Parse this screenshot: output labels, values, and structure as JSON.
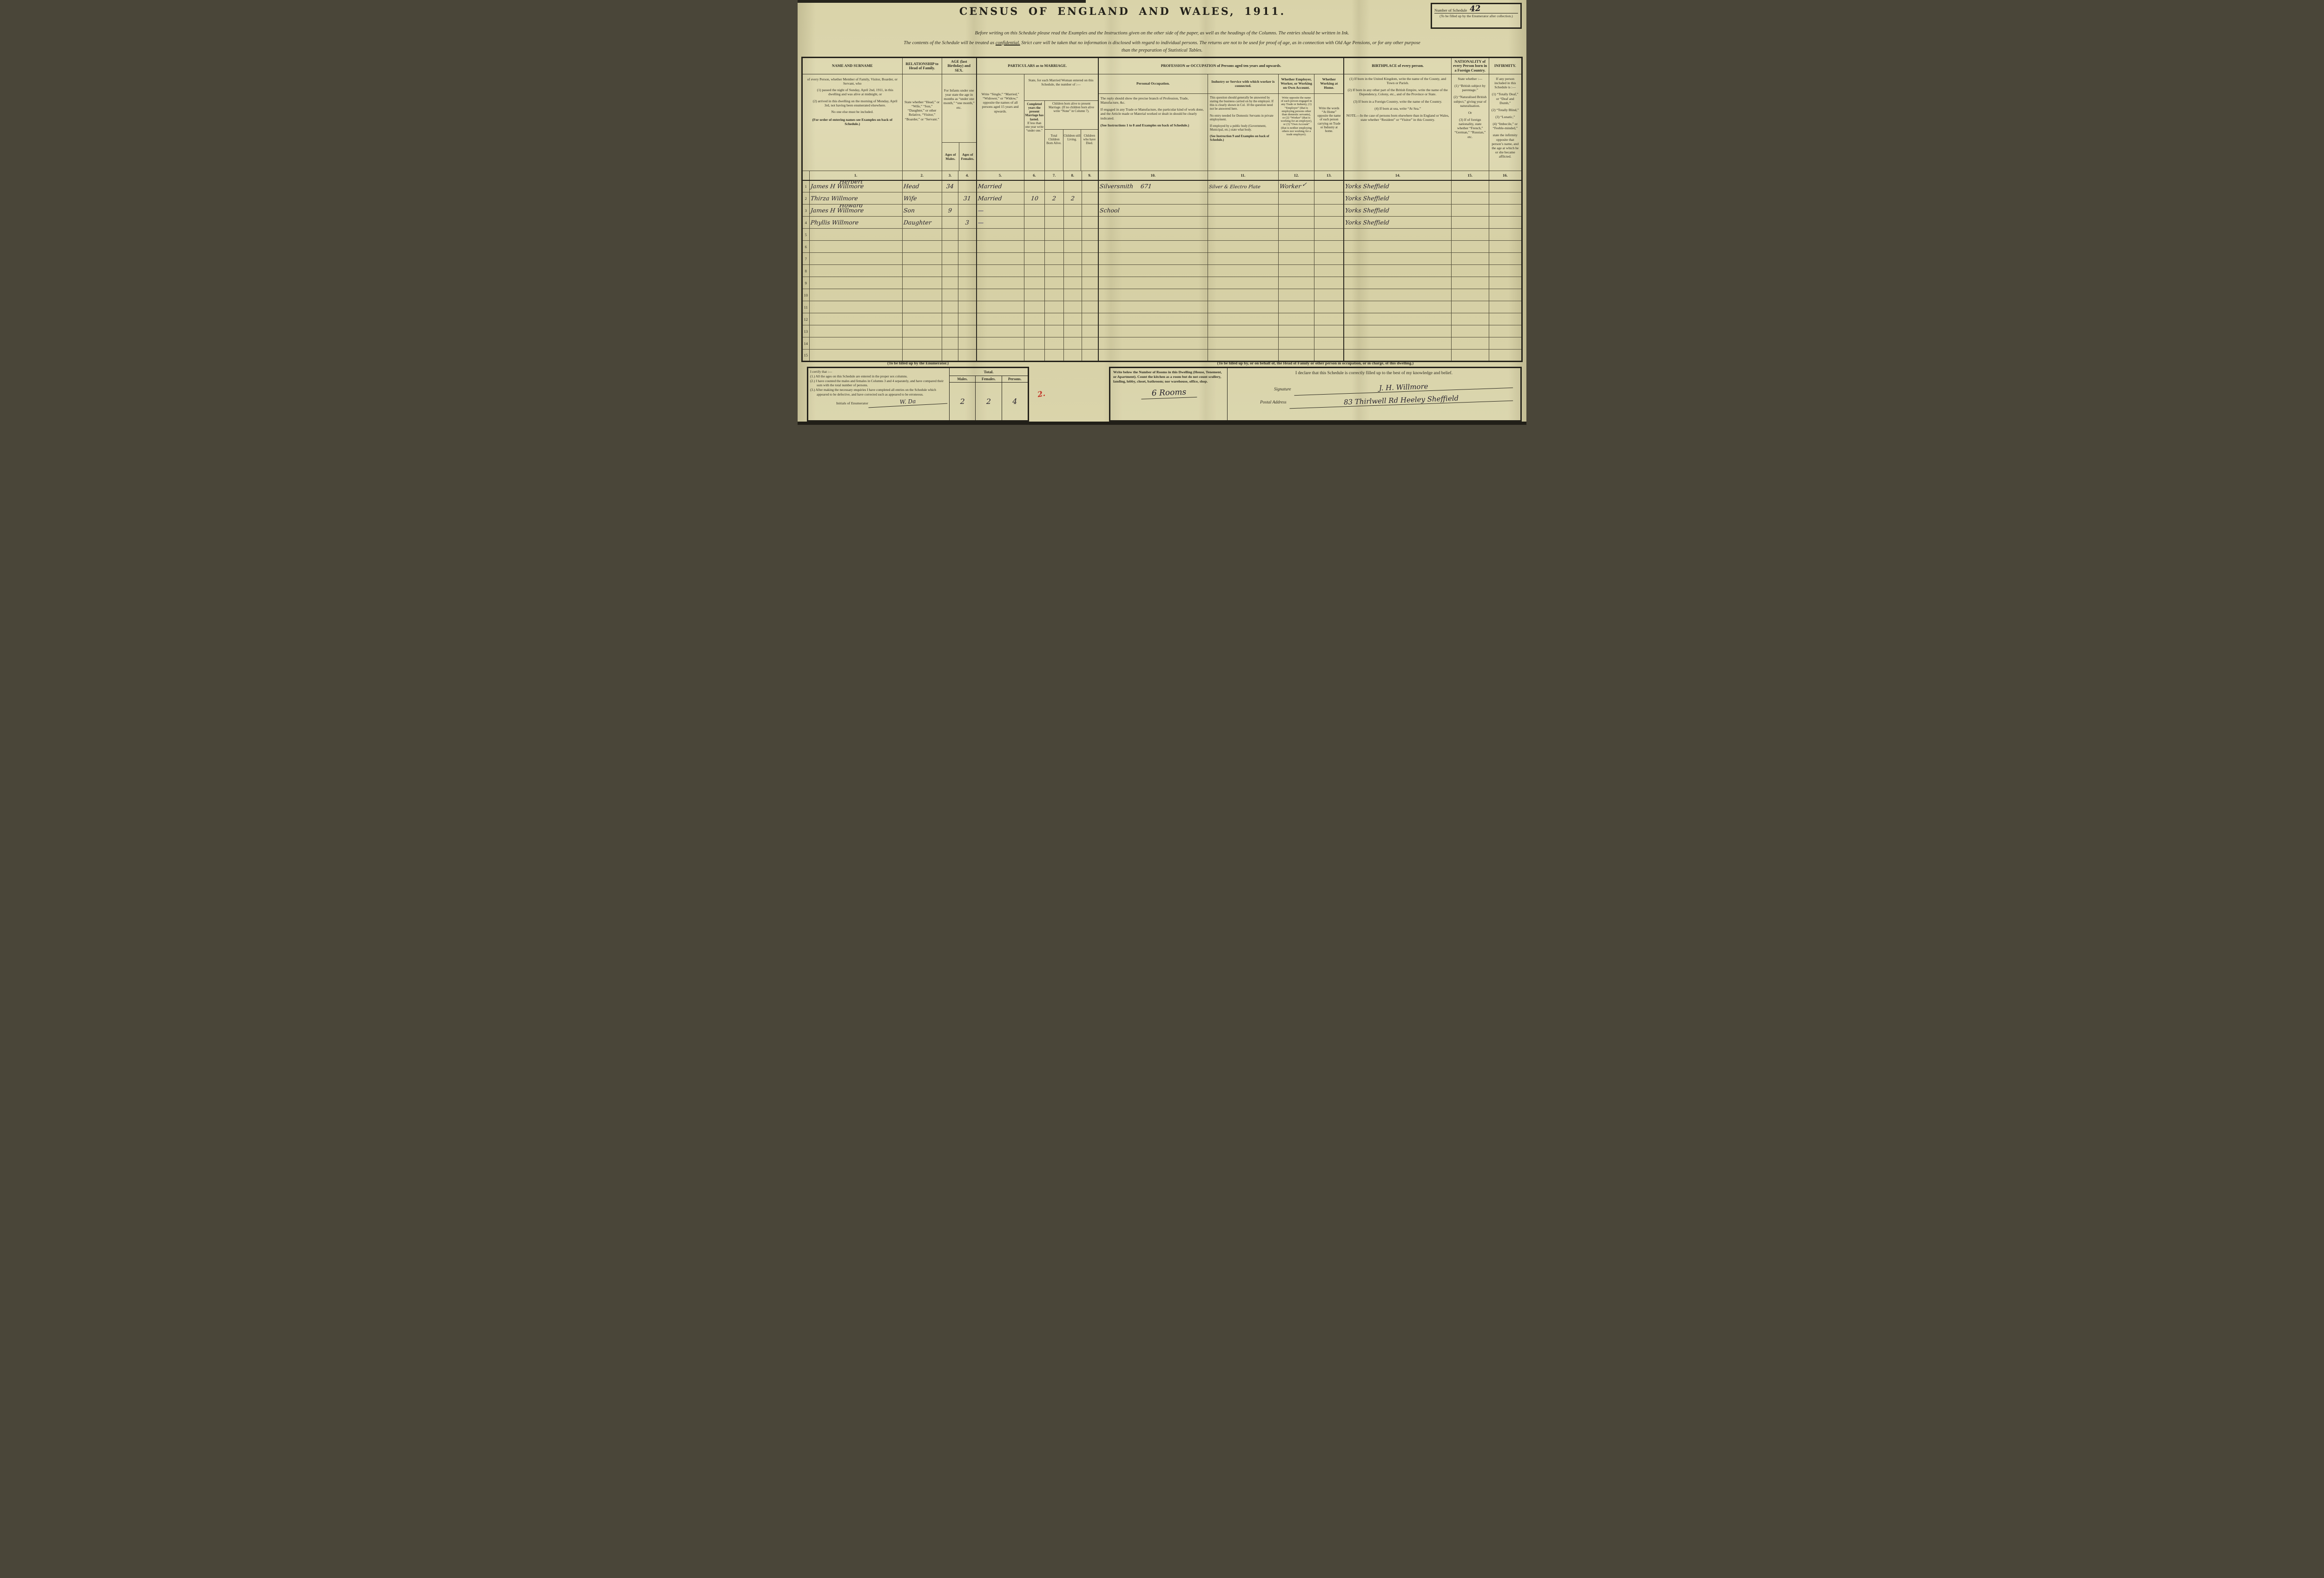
{
  "header": {
    "title": "CENSUS OF ENGLAND AND WALES, 1911.",
    "schedule_box": {
      "label": "Number of Schedule",
      "value": "42",
      "note": "(To be filled up by the Enumerator after collection.)"
    },
    "instruction_line": "Before writing on this Schedule please read the Examples and the Instructions given on the other side of the paper, as well as the headings of the Columns.  The entries should be written in Ink.",
    "confidential": {
      "line1_pre": "The contents of the Schedule will be treated as ",
      "line1_word": "confidential.",
      "line1_post": "  Strict care will be taken that no information is disclosed with regard to individual persons.  The returns are not to be used for proof of age, as in connection with Old Age Pensions, or for any other purpose",
      "line2": "than the preparation of Statistical Tables."
    }
  },
  "columns": {
    "name": {
      "band": "NAME AND SURNAME",
      "desc_intro": "of every Person, whether Member of Family, Visitor, Boarder, or Servant, who",
      "desc_1": "(1) passed the night of Sunday, April 2nd, 1911, in this dwelling and was alive at midnight, or",
      "desc_2": "(2) arrived in this dwelling on the morning of Monday, April 3rd, not having been enumerated elsewhere.",
      "desc_note": "No one else must be included.",
      "desc_footer": "(For order of entering names see Examples on back of Schedule.)"
    },
    "relationship": {
      "band": "RELATIONSHIP to Head of Family.",
      "desc": "State whether “Head,” or “Wife,” “Son,” “Daughter,” or other Relative, “Visitor,” “Boarder,” or “Servant.”"
    },
    "age": {
      "band": "AGE (last Birthday) and SEX.",
      "desc": "For Infants under one year state the age in months as “under one month,” “one month,” etc.",
      "males": "Ages of Males.",
      "females": "Ages of Females."
    },
    "marriage": {
      "band": "PARTICULARS as to MARRIAGE.",
      "single": "Write “Single,” “Married,” “Widower,” or “Widow,” opposite the names of all persons aged 15 years and upwards.",
      "married_woman": "State, for each Married Woman entered on this Schedule, the number of :—",
      "completed": "Completed years the present Marriage has lasted.",
      "completed_note": "If less than one year write “under one.”",
      "children_intro": "Children born alive to present Marriage. (If no children born alive write “None” in Column 7).",
      "born": "Total Children Born Alive.",
      "living": "Children still Living.",
      "died": "Children who have Died."
    },
    "profession": {
      "band": "PROFESSION or OCCUPATION of Persons aged ten years and upwards.",
      "personal_head": "Personal Occupation.",
      "personal_p1": "The reply should show the precise branch of Profession, Trade, Manufacture, &c.",
      "personal_p2": "If engaged in any Trade or Manufacture, the particular kind of work done, and the Article made or Material worked or dealt in should be clearly indicated.",
      "personal_p3": "(See Instructions 1 to 8 and Examples on back of Schedule.)",
      "industry_head": "Industry or Service with which worker is connected.",
      "industry_p1": "This question should generally be answered by stating the business carried on by the employer.  If this is clearly shown in Col. 10 the question need not be answered here.",
      "industry_p2": "No entry needed for Domestic Servants in private employment.",
      "industry_p3": "If employed by a public body (Government, Municipal, etc.) state what body.",
      "industry_p4": "(See Instruction 9 and Examples on back of Schedule.)",
      "employer_head": "Whether Employer, Worker, or Working on Own Account.",
      "employer_p1": "Write opposite the name of each person engaged in any Trade or Industry, (1) “Employer” (that is employing persons other than domestic servants), or (2) “Worker” (that is working for an employer), or (3) “Own Account” (that is neither employing others nor working for a trade employer).",
      "home_head": "Whether Working at Home.",
      "home_p1": "Write the words “At Home” opposite the name of each person carrying on Trade or Industry at home."
    },
    "birthplace": {
      "band": "BIRTHPLACE of every person.",
      "p1": "(1) If born in the United Kingdom, write the name of the County, and Town or Parish.",
      "p2": "(2) If born in any other part of the British Empire, write the name of the Dependency, Colony, etc., and of the Province or State.",
      "p3": "(3) If born in a Foreign Country, write the name of the Country.",
      "p4": "(4) If born at sea, write “At Sea.”",
      "note": "NOTE.—In the case of persons born elsewhere than in England or Wales, state whether “Resident” or “Visitor” in this Country."
    },
    "nationality": {
      "band": "NATIONALITY of every Person born in a Foreign Country.",
      "p1": "State whether :—",
      "p2": "(1) “British subject by parentage.”",
      "p3": "(2) “Naturalised British subject,” giving year of naturalisation.",
      "p4": "Or",
      "p5": "(3) If of foreign nationality, state whether “French,” “German,” “Russian,” etc."
    },
    "infirmity": {
      "band": "INFIRMITY.",
      "p1": "If any person included in this Schedule is :—",
      "p2": "(1) “Totally Deaf,” or “Deaf and Dumb,”",
      "p3": "(2) “Totally Blind,”",
      "p4": "(3) “Lunatic,”",
      "p5": "(4) “Imbecile,” or “Feeble-minded,”",
      "p6": "state the infirmity opposite that person’s name, and the age at which he or she became afflicted."
    }
  },
  "table": {
    "col_numbers": [
      "",
      "1.",
      "2.",
      "3.",
      "4.",
      "5.",
      "6.",
      "7.",
      "8.",
      "9.",
      "10.",
      "11.",
      "12.",
      "13.",
      "14.",
      "15.",
      "16."
    ],
    "rows": [
      {
        "num": "1",
        "name": "James H Willmore",
        "annotation": "Herbert",
        "relationship": "Head",
        "age_m": "34",
        "age_f": "",
        "marriage": "Married",
        "years": "",
        "born": "",
        "living": "",
        "died": "",
        "occupation": "Silversmith",
        "occ_code": "671",
        "industry": "Silver & Electro Plate",
        "employer": "Worker",
        "employer_check": true,
        "home": "",
        "birthplace": "Yorks Sheffield",
        "nationality": "",
        "infirmity": ""
      },
      {
        "num": "2",
        "name": "Thirza Willmore",
        "relationship": "Wife",
        "age_m": "",
        "age_f": "31",
        "marriage": "Married",
        "years": "10",
        "born": "2",
        "living": "2",
        "died": "",
        "occupation": "",
        "industry": "",
        "employer": "",
        "home": "",
        "birthplace": "Yorks Sheffield",
        "nationality": "",
        "infirmity": ""
      },
      {
        "num": "3",
        "name": "James H Willmore",
        "annotation": "Howard",
        "relationship": "Son",
        "age_m": "9",
        "age_f": "",
        "marriage": "—",
        "years": "",
        "born": "",
        "living": "",
        "died": "",
        "occupation": "School",
        "industry": "",
        "employer": "",
        "home": "",
        "birthplace": "Yorks Sheffield",
        "nationality": "",
        "infirmity": ""
      },
      {
        "num": "4",
        "name": "Phyllis Willmore",
        "relationship": "Daughter",
        "age_m": "",
        "age_f": "3",
        "marriage": "—",
        "years": "",
        "born": "",
        "living": "",
        "died": "",
        "occupation": "",
        "industry": "",
        "employer": "",
        "home": "",
        "birthplace": "Yorks Sheffield",
        "nationality": "",
        "infirmity": ""
      },
      {
        "num": "5"
      },
      {
        "num": "6"
      },
      {
        "num": "7"
      },
      {
        "num": "8"
      },
      {
        "num": "9"
      },
      {
        "num": "10"
      },
      {
        "num": "11"
      },
      {
        "num": "12"
      },
      {
        "num": "13"
      },
      {
        "num": "14"
      },
      {
        "num": "15"
      }
    ]
  },
  "enumerator_section": {
    "title": "(To be filled up by the Enumerator.)",
    "certify": "I certify that :—",
    "item1": "(1.) All the ages on this Schedule are entered in the proper sex columns.",
    "item2": "(2.) I have counted the males and females in Columns 3 and 4 separately, and have compared their sum with the total number of persons.",
    "item3": "(3.) After making the necessary enquiries I have completed all entries on the Schedule which appeared to be defective, and have corrected such as appeared to be erroneous.",
    "initials_label": "Initials of Enumerator",
    "initials_value": "W. Da",
    "total_label": "Total.",
    "males_label": "Males.",
    "females_label": "Females.",
    "persons_label": "Persons.",
    "males_value": "2",
    "females_value": "2",
    "persons_value": "4",
    "red_mark": "2."
  },
  "declaration_section": {
    "title": "(To be filled up by, or on behalf of, the Head of Family or other person in occupation, or in charge, of this dwelling.)",
    "rooms_text": "Write below the Number of Rooms in this Dwelling (House, Tenement, or Apartment).  Count the kitchen as a room but do not count scullery, landing, lobby, closet, bathroom; nor warehouse, office, shop.",
    "rooms_value": "6 Rooms",
    "declare": "I declare that this Schedule is correctly filled up to the best of my knowledge and belief.",
    "signature_label": "Signature",
    "signature_value": "J. H. Willmore",
    "address_label": "Postal Address",
    "address_value": "83 Thirlwell Rd Heeley Sheffield"
  },
  "accent_colors": {
    "paper": "#d9d3a9",
    "ink": "#26241c",
    "handwriting": "#24202a",
    "annotation_purple": "#7456af",
    "code_teal": "#0e6f68",
    "mark_red": "#c23327"
  }
}
